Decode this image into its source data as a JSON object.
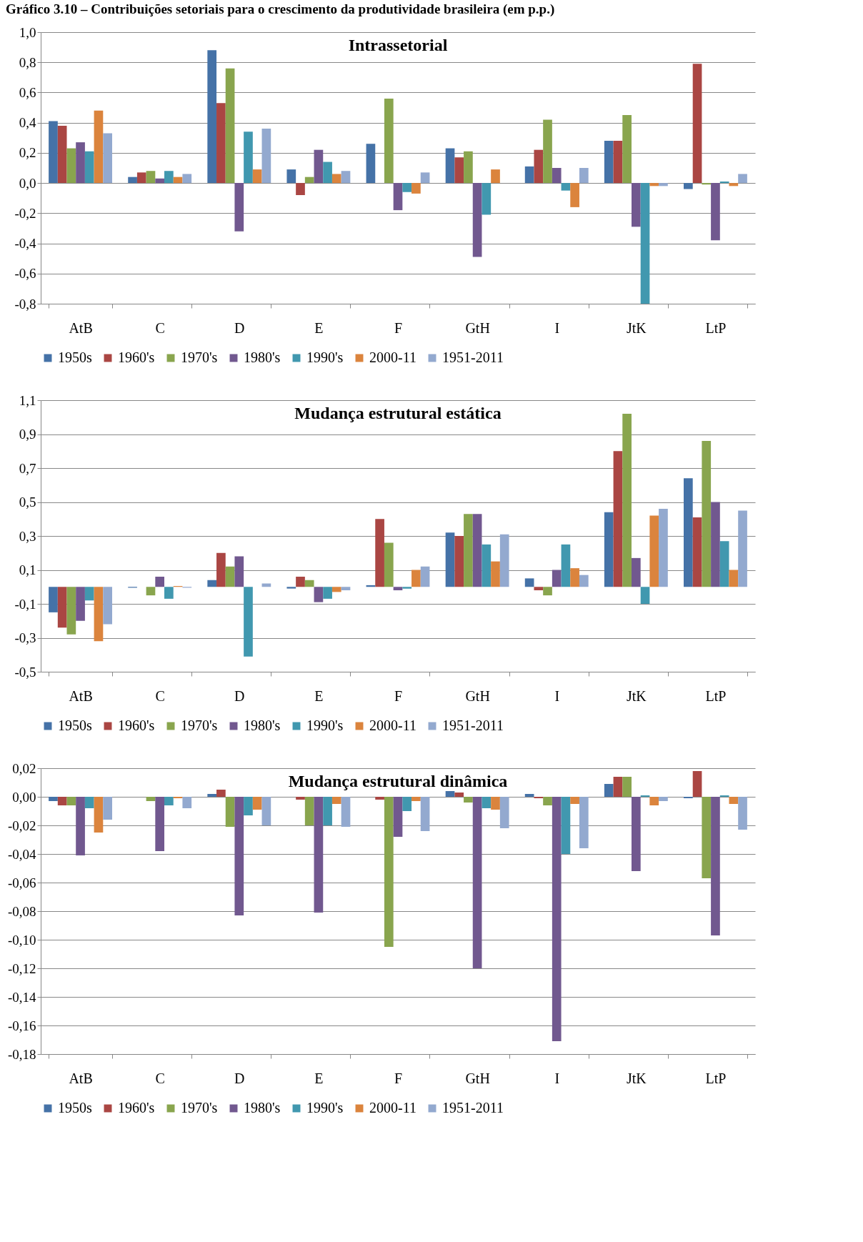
{
  "chart_data": [
    {
      "type": "bar",
      "title": "Intrassetorial",
      "annotations": [
        "Gráfico 3.10 – Contribuições setoriais para o crescimento da produtividade brasileira (em p.p.)"
      ],
      "categories": [
        "AtB",
        "C",
        "D",
        "E",
        "F",
        "GtH",
        "I",
        "JtK",
        "LtP"
      ],
      "ylim": [
        -0.8,
        1.0
      ],
      "yticks": [
        {
          "value": -0.8,
          "label": "-0,8"
        },
        {
          "value": -0.6,
          "label": "-0,6"
        },
        {
          "value": -0.4,
          "label": "-0,4"
        },
        {
          "value": -0.2,
          "label": "-0,2"
        },
        {
          "value": 0,
          "label": "0,0"
        },
        {
          "value": 0.2,
          "label": "0,2"
        },
        {
          "value": 0.4,
          "label": "0,4"
        },
        {
          "value": 0.6,
          "label": "0,6"
        },
        {
          "value": 0.8,
          "label": "0,8"
        },
        {
          "value": 1.0,
          "label": "1,0"
        }
      ],
      "grid": "y",
      "legend": "bottom",
      "series": [
        {
          "name": "1950s",
          "color": "#4572a7",
          "values": [
            0.41,
            0.04,
            0.88,
            0.09,
            0.26,
            0.23,
            0.11,
            0.28,
            -0.04
          ]
        },
        {
          "name": "1960's",
          "color": "#aa4643",
          "values": [
            0.38,
            0.07,
            0.53,
            -0.08,
            0,
            0.17,
            0.22,
            0.28,
            0.79
          ]
        },
        {
          "name": "1970's",
          "color": "#89a54e",
          "values": [
            0.23,
            0.08,
            0.76,
            0.04,
            0.56,
            0.21,
            0.42,
            0.45,
            -0.01
          ]
        },
        {
          "name": "1980's",
          "color": "#71588f",
          "values": [
            0.27,
            0.03,
            -0.32,
            0.22,
            -0.18,
            -0.49,
            0.1,
            -0.29,
            -0.38
          ]
        },
        {
          "name": "1990's",
          "color": "#4198af",
          "values": [
            0.21,
            0.08,
            0.34,
            0.14,
            -0.06,
            -0.21,
            -0.05,
            -0.8,
            0.01
          ]
        },
        {
          "name": "2000-11",
          "color": "#db843d",
          "values": [
            0.48,
            0.04,
            0.09,
            0.06,
            -0.07,
            0.09,
            -0.16,
            -0.02,
            -0.02
          ]
        },
        {
          "name": "1951-2011",
          "color": "#93a9cf",
          "values": [
            0.33,
            0.06,
            0.36,
            0.08,
            0.07,
            0,
            0.1,
            -0.02,
            0.06
          ]
        }
      ]
    },
    {
      "type": "bar",
      "title": "Mudança estrutural estática",
      "categories": [
        "AtB",
        "C",
        "D",
        "E",
        "F",
        "GtH",
        "I",
        "JtK",
        "LtP"
      ],
      "ylim": [
        -0.5,
        1.1
      ],
      "yticks": [
        {
          "value": -0.5,
          "label": "-0,5"
        },
        {
          "value": -0.3,
          "label": "-0,3"
        },
        {
          "value": -0.1,
          "label": "-0,1"
        },
        {
          "value": 0.1,
          "label": "0,1"
        },
        {
          "value": 0.3,
          "label": "0,3"
        },
        {
          "value": 0.5,
          "label": "0,5"
        },
        {
          "value": 0.7,
          "label": "0,7"
        },
        {
          "value": 0.9,
          "label": "0,9"
        },
        {
          "value": 1.1,
          "label": "1,1"
        }
      ],
      "grid": "y",
      "legend": "bottom",
      "series": [
        {
          "name": "1950s",
          "color": "#4572a7",
          "values": [
            -0.15,
            -0.005,
            0.04,
            -0.01,
            0.01,
            0.32,
            0.05,
            0.44,
            0.64
          ]
        },
        {
          "name": "1960's",
          "color": "#aa4643",
          "values": [
            -0.24,
            0,
            0.2,
            0.06,
            0.4,
            0.3,
            -0.02,
            0.8,
            0.41
          ]
        },
        {
          "name": "1970's",
          "color": "#89a54e",
          "values": [
            -0.28,
            -0.05,
            0.12,
            0.04,
            0.26,
            0.43,
            -0.05,
            1.02,
            0.86
          ]
        },
        {
          "name": "1980's",
          "color": "#71588f",
          "values": [
            -0.2,
            0.06,
            0.18,
            -0.09,
            -0.02,
            0.43,
            0.1,
            0.17,
            0.5
          ]
        },
        {
          "name": "1990's",
          "color": "#4198af",
          "values": [
            -0.08,
            -0.07,
            -0.41,
            -0.07,
            -0.01,
            0.25,
            0.25,
            -0.1,
            0.27
          ]
        },
        {
          "name": "2000-11",
          "color": "#db843d",
          "values": [
            -0.32,
            0.005,
            0,
            -0.03,
            0.1,
            0.15,
            0.11,
            0.42,
            0.1
          ]
        },
        {
          "name": "1951-2011",
          "color": "#93a9cf",
          "values": [
            -0.22,
            -0.005,
            0.02,
            -0.02,
            0.12,
            0.31,
            0.07,
            0.46,
            0.45
          ]
        }
      ]
    },
    {
      "type": "bar",
      "title": "Mudança estrutural dinâmica",
      "categories": [
        "AtB",
        "C",
        "D",
        "E",
        "F",
        "GtH",
        "I",
        "JtK",
        "LtP"
      ],
      "ylim": [
        -0.18,
        0.02
      ],
      "yticks": [
        {
          "value": -0.18,
          "label": "-0,18"
        },
        {
          "value": -0.16,
          "label": "-0,16"
        },
        {
          "value": -0.14,
          "label": "-0,14"
        },
        {
          "value": -0.12,
          "label": "-0,12"
        },
        {
          "value": -0.1,
          "label": "-0,10"
        },
        {
          "value": -0.08,
          "label": "-0,08"
        },
        {
          "value": -0.06,
          "label": "-0,06"
        },
        {
          "value": -0.04,
          "label": "-0,04"
        },
        {
          "value": -0.02,
          "label": "-0,02"
        },
        {
          "value": 0,
          "label": "0,00"
        },
        {
          "value": 0.02,
          "label": "0,02"
        }
      ],
      "grid": "y",
      "legend": "bottom",
      "series": [
        {
          "name": "1950s",
          "color": "#4572a7",
          "values": [
            -0.003,
            0,
            0.002,
            0,
            0,
            0.004,
            0.002,
            0.009,
            -0.001
          ]
        },
        {
          "name": "1960's",
          "color": "#aa4643",
          "values": [
            -0.006,
            0,
            0.005,
            -0.002,
            -0.002,
            0.003,
            -0.001,
            0.014,
            0.018
          ]
        },
        {
          "name": "1970's",
          "color": "#89a54e",
          "values": [
            -0.006,
            -0.003,
            -0.021,
            -0.02,
            -0.105,
            -0.004,
            -0.006,
            0.014,
            -0.057
          ]
        },
        {
          "name": "1980's",
          "color": "#71588f",
          "values": [
            -0.041,
            -0.038,
            -0.083,
            -0.081,
            -0.028,
            -0.12,
            -0.171,
            -0.052,
            -0.097
          ]
        },
        {
          "name": "1990's",
          "color": "#4198af",
          "values": [
            -0.008,
            -0.006,
            -0.013,
            -0.02,
            -0.01,
            -0.008,
            -0.04,
            0.001,
            0.001
          ]
        },
        {
          "name": "2000-11",
          "color": "#db843d",
          "values": [
            -0.025,
            -0.001,
            -0.009,
            -0.005,
            -0.003,
            -0.009,
            -0.005,
            -0.006,
            -0.005
          ]
        },
        {
          "name": "1951-2011",
          "color": "#93a9cf",
          "values": [
            -0.016,
            -0.008,
            -0.02,
            -0.021,
            -0.024,
            -0.022,
            -0.036,
            -0.003,
            -0.023
          ]
        }
      ]
    }
  ]
}
